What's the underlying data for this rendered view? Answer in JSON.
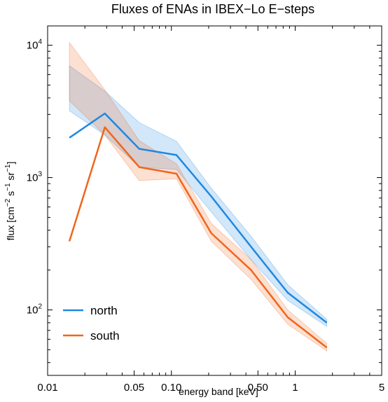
{
  "chart_data": {
    "type": "line",
    "title": "Fluxes of ENAs in IBEX−Lo E−steps",
    "xlabel": "energy band [keV]",
    "ylabel": {
      "prefix": "flux [cm",
      "sup1": "−2",
      "mid1": " s",
      "sup2": "−1",
      "mid2": " sr",
      "sup3": "−1",
      "suffix": "]"
    },
    "xscale": "log",
    "yscale": "log",
    "xlim": [
      0.01,
      5
    ],
    "ylim": [
      32,
      14000
    ],
    "x_ticks": [
      {
        "value": 0.01,
        "label": "0.01"
      },
      {
        "value": 0.05,
        "label": "0.05"
      },
      {
        "value": 0.1,
        "label": "0.10"
      },
      {
        "value": 0.5,
        "label": "0.50"
      },
      {
        "value": 1,
        "label": "1"
      },
      {
        "value": 5,
        "label": "5"
      }
    ],
    "y_ticks": [
      {
        "value": 100,
        "base": "10",
        "exp": "2"
      },
      {
        "value": 1000,
        "base": "10",
        "exp": "3"
      },
      {
        "value": 10000,
        "base": "10",
        "exp": "4"
      }
    ],
    "legend_position": "bottom-left",
    "series": [
      {
        "name": "north",
        "color": "#1f88e0",
        "x": [
          0.015,
          0.029,
          0.055,
          0.11,
          0.21,
          0.44,
          0.87,
          1.8
        ],
        "values": [
          2000,
          3050,
          1650,
          1480,
          720,
          300,
          135,
          80
        ],
        "lower": [
          3200,
          2100,
          1200,
          1150,
          550,
          240,
          118,
          75
        ],
        "upper": [
          7000,
          4500,
          2600,
          1880,
          830,
          360,
          155,
          85
        ]
      },
      {
        "name": "south",
        "color": "#f0661c",
        "x": [
          0.015,
          0.029,
          0.055,
          0.11,
          0.21,
          0.44,
          0.87,
          1.8
        ],
        "values": [
          330,
          2400,
          1200,
          1070,
          380,
          200,
          88,
          52
        ],
        "lower": [
          3800,
          2100,
          950,
          980,
          330,
          170,
          78,
          49
        ],
        "upper": [
          10500,
          4600,
          1900,
          1270,
          450,
          240,
          100,
          56
        ]
      }
    ]
  }
}
